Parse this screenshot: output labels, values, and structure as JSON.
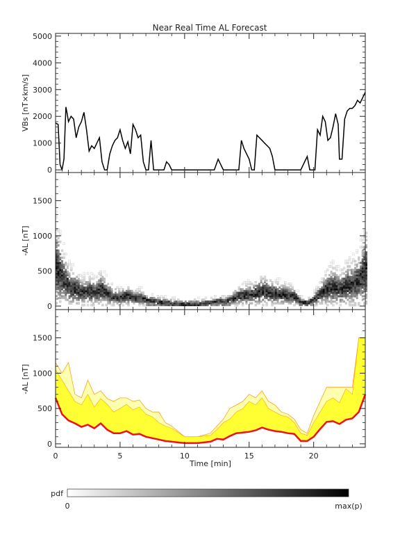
{
  "title": "Near Real Time AL Forecast",
  "chart_data": [
    {
      "type": "line",
      "ylabel": "VBs [nT×km/s]",
      "xlim": [
        0,
        24
      ],
      "ylim": [
        -100,
        5100
      ],
      "yticks": [
        0,
        1000,
        2000,
        3000,
        4000,
        5000
      ],
      "series": [
        {
          "x": [
            0.0,
            0.2,
            0.35,
            0.5,
            0.65,
            0.8,
            0.9,
            1.0,
            1.2,
            1.4,
            1.6,
            1.8,
            2.0,
            2.2,
            2.4,
            2.6,
            2.8,
            3.0,
            3.2,
            3.4,
            3.6,
            3.8,
            4.0,
            4.2,
            4.4,
            4.6,
            4.8,
            5.0,
            5.2,
            5.4,
            5.6,
            5.8,
            6.0,
            6.2,
            6.4,
            6.6,
            6.8,
            7.0,
            7.2,
            7.4,
            7.6,
            7.8,
            8.0,
            8.2,
            8.4,
            8.6,
            8.8,
            9.0,
            10.0,
            11.0,
            12.0,
            12.3,
            12.6,
            13.0,
            13.2,
            13.4,
            13.6,
            13.8,
            14.0,
            14.2,
            14.4,
            14.6,
            14.8,
            15.0,
            15.2,
            15.4,
            15.6,
            15.8,
            16.0,
            16.2,
            16.4,
            16.6,
            16.8,
            17.0,
            18.0,
            19.0,
            19.2,
            19.5,
            19.7,
            19.9,
            20.1,
            20.3,
            20.5,
            20.7,
            20.9,
            21.1,
            21.3,
            21.5,
            21.7,
            21.9,
            22.0,
            22.2,
            22.4,
            22.6,
            22.8,
            23.0,
            23.2,
            23.4,
            23.6,
            23.8,
            24.0
          ],
          "values": [
            1750,
            1700,
            200,
            0,
            400,
            2350,
            2100,
            1800,
            2000,
            1900,
            1200,
            1600,
            1800,
            2150,
            1500,
            700,
            900,
            800,
            1000,
            1200,
            300,
            0,
            0,
            600,
            900,
            1100,
            1200,
            1500,
            1100,
            800,
            1050,
            600,
            1700,
            1500,
            1200,
            1300,
            300,
            0,
            0,
            1100,
            0,
            0,
            0,
            0,
            0,
            300,
            200,
            0,
            0,
            0,
            0,
            0,
            400,
            0,
            0,
            0,
            0,
            0,
            0,
            0,
            1100,
            800,
            600,
            400,
            0,
            0,
            1300,
            1200,
            1100,
            1000,
            900,
            800,
            500,
            0,
            0,
            0,
            200,
            500,
            0,
            0,
            0,
            1500,
            1300,
            2000,
            1800,
            1100,
            1200,
            1600,
            2100,
            1700,
            400,
            400,
            1900,
            2200,
            2300,
            2300,
            2400,
            2600,
            2500,
            2700,
            2900
          ]
        }
      ]
    },
    {
      "type": "heatmap",
      "ylabel": "-AL [nT]",
      "xlim": [
        0,
        24
      ],
      "ylim": [
        -50,
        1900
      ],
      "yticks": [
        0,
        500,
        1000,
        1500
      ],
      "median": {
        "x": [
          0,
          0.5,
          1,
          1.5,
          2,
          2.5,
          3,
          3.5,
          4,
          4.5,
          5,
          5.5,
          6,
          6.5,
          7,
          7.5,
          8,
          8.5,
          9,
          10,
          11,
          12,
          12.5,
          13,
          13.5,
          14,
          14.5,
          15,
          15.5,
          16,
          16.5,
          17,
          17.5,
          18,
          18.5,
          19,
          19.5,
          20,
          20.5,
          21,
          21.5,
          22,
          22.5,
          23,
          23.5,
          24
        ],
        "values": [
          550,
          380,
          260,
          230,
          180,
          200,
          170,
          230,
          160,
          120,
          110,
          140,
          100,
          110,
          70,
          60,
          40,
          30,
          20,
          10,
          10,
          30,
          60,
          50,
          80,
          120,
          140,
          150,
          170,
          200,
          180,
          160,
          150,
          140,
          120,
          40,
          30,
          90,
          160,
          240,
          260,
          220,
          280,
          300,
          360,
          520
        ]
      }
    },
    {
      "type": "area",
      "ylabel": "-AL [nT]",
      "xlabel": "Time [min]",
      "xlim": [
        0,
        24
      ],
      "ylim": [
        -50,
        1900
      ],
      "yticks": [
        0,
        500,
        1000,
        1500
      ],
      "xticks": [
        0,
        5,
        10,
        15,
        20
      ],
      "x": [
        0,
        0.5,
        1,
        1.5,
        2,
        2.5,
        3,
        3.5,
        4,
        4.5,
        5,
        5.5,
        6,
        6.5,
        7,
        7.5,
        8,
        8.5,
        9,
        10,
        11,
        12,
        12.5,
        13,
        13.5,
        14,
        14.5,
        15,
        15.5,
        16,
        16.5,
        17,
        17.5,
        18,
        18.5,
        19,
        19.5,
        20,
        20.5,
        21,
        21.5,
        22,
        22.5,
        23,
        23.5,
        24
      ],
      "median": [
        650,
        420,
        330,
        290,
        240,
        270,
        220,
        290,
        200,
        150,
        150,
        180,
        130,
        140,
        100,
        80,
        60,
        40,
        30,
        10,
        10,
        30,
        70,
        60,
        110,
        150,
        160,
        170,
        190,
        230,
        200,
        180,
        170,
        150,
        140,
        40,
        40,
        100,
        210,
        310,
        320,
        280,
        340,
        360,
        450,
        700
      ],
      "band_upper": [
        1050,
        900,
        750,
        600,
        550,
        700,
        520,
        640,
        560,
        450,
        500,
        560,
        480,
        520,
        420,
        380,
        300,
        250,
        220,
        100,
        100,
        120,
        200,
        300,
        350,
        450,
        500,
        600,
        550,
        650,
        500,
        450,
        400,
        380,
        300,
        150,
        120,
        300,
        450,
        600,
        650,
        580,
        780,
        700,
        1500,
        1500
      ],
      "envelope_upper": [
        1150,
        1000,
        1150,
        700,
        650,
        900,
        700,
        750,
        640,
        600,
        650,
        650,
        600,
        620,
        500,
        450,
        450,
        300,
        250,
        100,
        100,
        150,
        250,
        350,
        500,
        550,
        600,
        700,
        650,
        750,
        600,
        550,
        450,
        420,
        350,
        200,
        150,
        400,
        600,
        800,
        800,
        800,
        800,
        800,
        1500,
        1500
      ],
      "colors": {
        "band": "#ffff33",
        "envelope": "#ffffb0",
        "envelope_edge": "#ff9f1a",
        "median": "#ee1111"
      }
    }
  ],
  "colorbar": {
    "label": "pdf",
    "min_label": "0",
    "max_label": "max(p)"
  },
  "colors": {
    "axis": "#222222",
    "line": "#000000"
  }
}
